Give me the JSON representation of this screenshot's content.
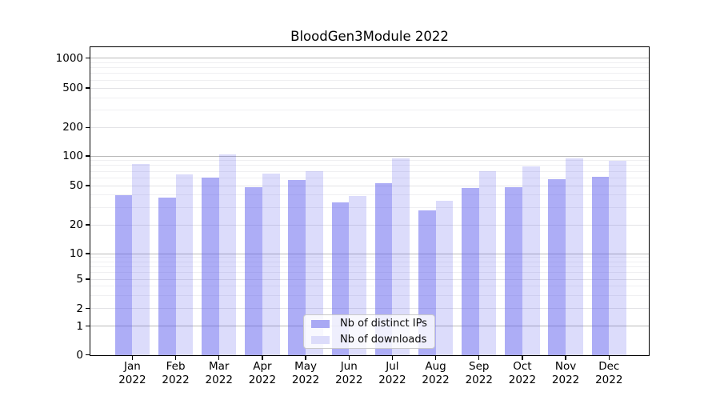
{
  "title": "BloodGen3Module 2022",
  "chart_data": {
    "type": "bar",
    "title": "BloodGen3Module 2022",
    "categories": [
      "Jan 2022",
      "Feb 2022",
      "Mar 2022",
      "Apr 2022",
      "May 2022",
      "Jun 2022",
      "Jul 2022",
      "Aug 2022",
      "Sep 2022",
      "Oct 2022",
      "Nov 2022",
      "Dec 2022"
    ],
    "series": [
      {
        "name": "Nb of distinct IPs",
        "key": "ips",
        "values": [
          40,
          38,
          60,
          48,
          57,
          34,
          53,
          28,
          47,
          48,
          58,
          61
        ]
      },
      {
        "name": "Nb of downloads",
        "key": "downloads",
        "values": [
          83,
          65,
          104,
          66,
          70,
          39,
          94,
          35,
          70,
          79,
          94,
          90
        ]
      }
    ],
    "xlabel": "",
    "ylabel": "",
    "yscale": "log-like (symlog, linear below 1)",
    "yticks": [
      0,
      1,
      2,
      5,
      10,
      20,
      50,
      100,
      200,
      500,
      1000
    ],
    "ylim": [
      0,
      1300
    ],
    "grid": true,
    "legend_position": "lower center"
  },
  "axis": {
    "ytick_labels": [
      "1000",
      "500",
      "200",
      "100",
      "50",
      "20",
      "10",
      "5",
      "2",
      "1",
      "0"
    ],
    "months": [
      "Jan",
      "Feb",
      "Mar",
      "Apr",
      "May",
      "Jun",
      "Jul",
      "Aug",
      "Sep",
      "Oct",
      "Nov",
      "Dec"
    ],
    "year": "2022"
  },
  "legend": {
    "items": [
      {
        "label": "Nb of distinct IPs"
      },
      {
        "label": "Nb of downloads"
      }
    ]
  },
  "colors": {
    "series_ips": "rgba(92,92,237,0.5)",
    "series_downloads": "rgba(92,92,237,0.21)",
    "legend_swatch_ips": "#a9a9f4",
    "legend_swatch_downloads": "#dcdcfa",
    "grid_major": "#b9b9b9",
    "grid_mid": "#e3e3e6",
    "grid_minor": "#efeff1",
    "text": "#000000",
    "background": "#ffffff"
  }
}
